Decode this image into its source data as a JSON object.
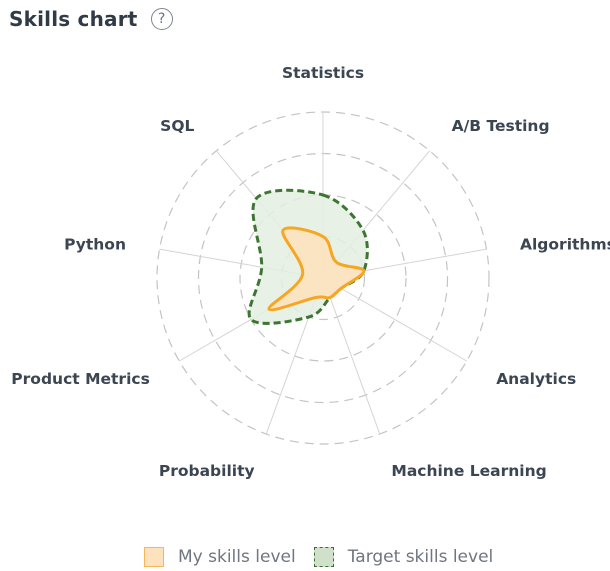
{
  "header": {
    "title": "Skills chart",
    "help_icon": "?"
  },
  "chart_data": {
    "type": "radar",
    "axes": [
      "Statistics",
      "A/B Testing",
      "Algorithms",
      "Analytics",
      "Machine Learning",
      "Probability",
      "Product Metrics",
      "Python",
      "SQL"
    ],
    "rings": 4,
    "range": [
      0,
      4
    ],
    "series": [
      {
        "name": "My skills level",
        "values": [
          1,
          0.5,
          1,
          0.5,
          0.5,
          0.5,
          1.5,
          0.5,
          1.5
        ],
        "stroke": "#f6a623",
        "fill": "#fde2bd",
        "line": "solid"
      },
      {
        "name": "Target skills level",
        "values": [
          2,
          1.5,
          1,
          0.5,
          0.5,
          1,
          2,
          1.5,
          2.5
        ],
        "stroke": "#3d7533",
        "fill": "#e4efe0",
        "line": "dashed"
      }
    ],
    "grid": true,
    "legend_position": "bottom"
  },
  "legend": {
    "my_label": "My skills level",
    "target_label": "Target skills level"
  }
}
